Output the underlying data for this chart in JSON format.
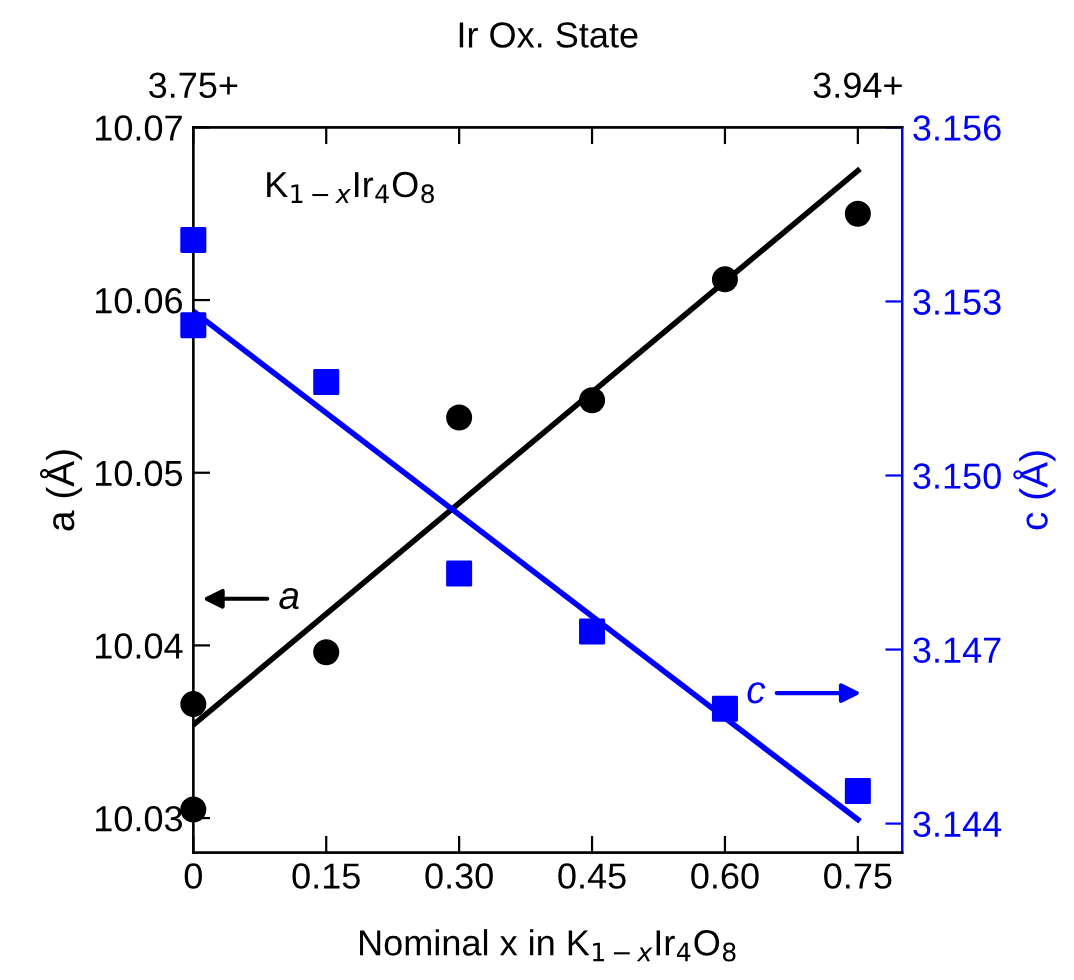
{
  "chart_data": {
    "type": "scatter",
    "xlabel": "Nominal x in K$_{1−x}$Ir$_{4}$O$_{8}$",
    "ylabel": "a (Å)",
    "y2label": "c (Å)",
    "x2label": "Ir Ox. State",
    "annotations": [
      "K$_{1−x}$Ir$_{4}$O$_{8}$",
      "a",
      "c",
      "3.75+",
      "3.94+"
    ],
    "xlim": [
      0,
      0.8
    ],
    "xticks": [
      {
        "value": 0,
        "label": "0"
      },
      {
        "value": 0.15,
        "label": "0.15"
      },
      {
        "value": 0.3,
        "label": "0.30"
      },
      {
        "value": 0.45,
        "label": "0.45"
      },
      {
        "value": 0.6,
        "label": "0.60"
      },
      {
        "value": 0.75,
        "label": "0.75"
      }
    ],
    "ylim": [
      10.028,
      10.07
    ],
    "yticks": [
      10.03,
      10.04,
      10.05,
      10.06,
      10.07
    ],
    "y2lim": [
      3.1435,
      3.156
    ],
    "y2ticks": [
      {
        "value": 3.144,
        "label": "3.144"
      },
      {
        "value": 3.147,
        "label": "3.147"
      },
      {
        "value": 3.15,
        "label": "3.150"
      },
      {
        "value": 3.153,
        "label": "3.153"
      },
      {
        "value": 3.156,
        "label": "3.156"
      }
    ],
    "grid": false,
    "legend": false,
    "series": [
      {
        "color": "#000000",
        "marker": "circle",
        "x": [
          0,
          0,
          0.15,
          0.3,
          0.45,
          0.6,
          0.75
        ],
        "values": [
          10.0366,
          10.0305,
          10.0396,
          10.0532,
          10.0542,
          10.0612,
          10.065
        ]
      },
      {
        "type": "line",
        "color": "#000000",
        "marker": "none",
        "x": [
          0,
          0.75
        ],
        "values": [
          10.0354,
          10.0675
        ]
      },
      {
        "axis": "y2",
        "color": "#0000ff",
        "marker": "square",
        "x": [
          0,
          0,
          0.15,
          0.3,
          0.45,
          0.6,
          0.75
        ],
        "values": [
          3.15406,
          3.15259,
          3.15161,
          3.14831,
          3.14731,
          3.14598,
          3.14456
        ]
      },
      {
        "type": "line",
        "axis": "y2",
        "color": "#0000ff",
        "marker": "none",
        "x": [
          0,
          0.75
        ],
        "values": [
          3.15283,
          3.14407
        ]
      }
    ]
  }
}
